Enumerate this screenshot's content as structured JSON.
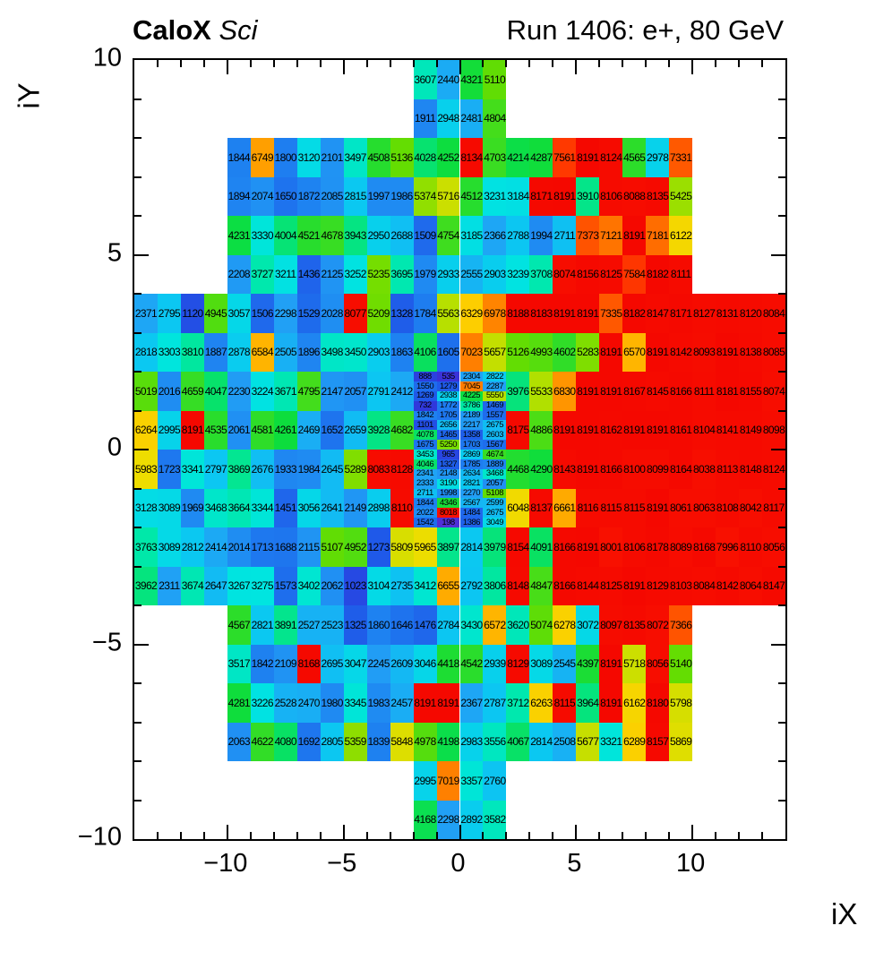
{
  "header": {
    "title_bold": "CaloX",
    "title_italic": "Sci",
    "title_right": "Run 1406: e+, 80 GeV"
  },
  "chart_data": {
    "type": "heatmap",
    "title": "CaloX Sci",
    "subtitle": "Run 1406: e+, 80 GeV",
    "xlabel": "iX",
    "ylabel": "iY",
    "x_range": [
      -14,
      14
    ],
    "y_range": [
      -10,
      10
    ],
    "x_ticks": [
      -10,
      -5,
      0,
      5,
      10
    ],
    "y_ticks": [
      10,
      5,
      0,
      -5,
      -10
    ],
    "value_min": 0,
    "value_max": 8191,
    "palette_stops": [
      [
        0.0,
        "#5b2ed6"
      ],
      [
        0.08,
        "#3333d9"
      ],
      [
        0.15,
        "#1f56e8"
      ],
      [
        0.22,
        "#1e7ef0"
      ],
      [
        0.28,
        "#21a0f5"
      ],
      [
        0.34,
        "#0cc6f2"
      ],
      [
        0.4,
        "#00e5e0"
      ],
      [
        0.46,
        "#00e8a8"
      ],
      [
        0.52,
        "#0ddd3d"
      ],
      [
        0.58,
        "#3fdd1f"
      ],
      [
        0.63,
        "#66dd00"
      ],
      [
        0.68,
        "#b8e000"
      ],
      [
        0.73,
        "#eedd00"
      ],
      [
        0.78,
        "#ffcc00"
      ],
      [
        0.83,
        "#ff9900"
      ],
      [
        0.88,
        "#ff6a00"
      ],
      [
        0.92,
        "#ff3c00"
      ],
      [
        0.96,
        "#fa1500"
      ],
      [
        1.0,
        "#f50800"
      ]
    ],
    "grid": {
      "cols": 28,
      "rows": 20,
      "top_row_iy": 9
    },
    "rows": [
      {
        "iy": 9,
        "segments": [
          {
            "start": 12,
            "values": [
              3607,
              2440,
              4321,
              5110
            ]
          }
        ]
      },
      {
        "iy": 8,
        "segments": [
          {
            "start": 12,
            "values": [
              1911,
              2948,
              2481,
              4804
            ]
          }
        ]
      },
      {
        "iy": 7,
        "segments": [
          {
            "start": 4,
            "values": [
              1844,
              6749,
              1800,
              3120,
              2101,
              3497,
              4508,
              5136,
              4028,
              4252,
              8134,
              4703,
              4214,
              4287,
              7561,
              8191,
              8124,
              4565,
              2978,
              7331
            ]
          }
        ]
      },
      {
        "iy": 6,
        "segments": [
          {
            "start": 4,
            "values": [
              1894,
              2074,
              1650,
              1872,
              2085,
              2815,
              1997,
              1986,
              5374,
              5716,
              4512,
              3231,
              3184,
              8171,
              8191,
              3910,
              8106,
              8088,
              8135,
              5425
            ]
          }
        ]
      },
      {
        "iy": 5,
        "segments": [
          {
            "start": 4,
            "values": [
              4231,
              3330,
              4004,
              4521,
              4678,
              3943,
              2950,
              2688,
              1509,
              4754,
              3185,
              2366,
              2788,
              1994,
              2711,
              7373,
              7121,
              8191,
              7181,
              6122
            ]
          }
        ]
      },
      {
        "iy": 4,
        "segments": [
          {
            "start": 4,
            "values": [
              2208,
              3727,
              3211,
              1436,
              2125,
              3252,
              5235,
              3695,
              1979,
              2933,
              2555,
              2903,
              3239,
              3708,
              8074,
              8156,
              8125,
              7584,
              8182,
              8111
            ]
          }
        ]
      },
      {
        "iy": 3,
        "segments": [
          {
            "start": 0,
            "values": [
              2371,
              2795,
              1120,
              4945,
              3057,
              1506,
              2298,
              1529,
              2028,
              8077,
              5209,
              1328,
              1784,
              5563,
              6329,
              6978,
              8188,
              8183,
              8191,
              8191,
              7335,
              8182,
              8147,
              8171,
              8127,
              8131,
              8120,
              8084
            ]
          }
        ]
      },
      {
        "iy": 2,
        "segments": [
          {
            "start": 0,
            "values": [
              2818,
              3303,
              3810,
              1887,
              2878,
              6584,
              2505,
              1896,
              3498,
              3450,
              2903,
              1863,
              4106,
              1605,
              7023,
              5657,
              5126,
              4993,
              4602,
              5283,
              8191,
              6570,
              8191,
              8142,
              8093,
              8191,
              8138,
              8085
            ]
          }
        ]
      },
      {
        "iy": 1,
        "segments": [
          {
            "start": 0,
            "values": [
              5019,
              2016,
              4659,
              4047,
              2230,
              3224,
              3671,
              4795,
              2147,
              2057,
              2791,
              2412
            ]
          },
          {
            "start": 16,
            "values": [
              3976,
              5533,
              6830,
              8191,
              8191,
              8167,
              8145,
              8166,
              8111,
              8181,
              8155,
              8074
            ]
          }
        ]
      },
      {
        "iy": 0,
        "segments": [
          {
            "start": 0,
            "values": [
              6264,
              2995,
              8191,
              4535,
              2061,
              4581,
              4261,
              2469,
              1652,
              2659,
              3928,
              4682
            ]
          },
          {
            "start": 16,
            "values": [
              8175,
              4886,
              8191,
              8191,
              8162,
              8191,
              8191,
              8161,
              8104,
              8141,
              8149,
              8098
            ]
          }
        ]
      },
      {
        "iy": -1,
        "segments": [
          {
            "start": 0,
            "values": [
              5983,
              1723,
              3341,
              2797,
              3869,
              2676,
              1933,
              1984,
              2645,
              5289,
              8083,
              8128
            ]
          },
          {
            "start": 16,
            "values": [
              4468,
              4290,
              8143,
              8191,
              8166,
              8100,
              8099,
              8164,
              8038,
              8113,
              8148,
              8124
            ]
          }
        ]
      },
      {
        "iy": -2,
        "segments": [
          {
            "start": 0,
            "values": [
              3128,
              3089,
              1969,
              3468,
              3664,
              3344,
              1451,
              3056,
              2641,
              2149,
              2898,
              8110
            ]
          },
          {
            "start": 16,
            "values": [
              6048,
              8137,
              6661,
              8116,
              8115,
              8115,
              8191,
              8061,
              8063,
              8108,
              8042,
              8117
            ]
          }
        ]
      },
      {
        "iy": -3,
        "segments": [
          {
            "start": 0,
            "values": [
              3763,
              3089,
              2812,
              2414,
              2014,
              1713,
              1688,
              2115,
              5107,
              4952,
              1273,
              5809,
              5965,
              3897,
              2814,
              3979,
              8154,
              4091,
              8166,
              8191,
              8001,
              8106,
              8178,
              8089,
              8168,
              7996,
              8110,
              8056
            ]
          }
        ]
      },
      {
        "iy": -4,
        "segments": [
          {
            "start": 0,
            "values": [
              3962,
              2311,
              3674,
              2647,
              3267,
              3275,
              1573,
              3402,
              2062,
              1023,
              3104,
              2735,
              3412,
              6655,
              2792,
              3806,
              8148,
              4847,
              8166,
              8144,
              8125,
              8191,
              8129,
              8103,
              8084,
              8142,
              8064,
              8147
            ]
          }
        ]
      },
      {
        "iy": -5,
        "segments": [
          {
            "start": 4,
            "values": [
              4567,
              2821,
              3891,
              2527,
              2523,
              1325,
              1860,
              1646,
              1476,
              2784,
              3430,
              6572,
              3620,
              5074,
              6278,
              3072,
              8097,
              8135,
              8072,
              7366
            ]
          }
        ]
      },
      {
        "iy": -6,
        "segments": [
          {
            "start": 4,
            "values": [
              3517,
              1842,
              2109,
              8168,
              2695,
              3047,
              2245,
              2609,
              3046,
              4418,
              4542,
              2939,
              8129,
              3089,
              2545,
              4397,
              8191,
              5718,
              8056,
              5140
            ]
          }
        ]
      },
      {
        "iy": -7,
        "segments": [
          {
            "start": 4,
            "values": [
              4281,
              3226,
              2528,
              2470,
              1980,
              3345,
              1983,
              2457,
              8191,
              8191,
              2367,
              2787,
              3712,
              6263,
              8115,
              3964,
              8191,
              6162,
              8180,
              5798
            ]
          }
        ]
      },
      {
        "iy": -8,
        "segments": [
          {
            "start": 4,
            "values": [
              2063,
              4622,
              4080,
              1692,
              2805,
              5359,
              1839,
              5848,
              4978,
              4198,
              2983,
              3556,
              4067,
              2814,
              2508,
              5677,
              3321,
              6289,
              8157,
              5869
            ]
          }
        ]
      },
      {
        "iy": -9,
        "segments": [
          {
            "start": 12,
            "values": [
              2995,
              7019,
              3357,
              2760
            ]
          }
        ]
      },
      {
        "iy": -10,
        "segments": [
          {
            "start": 12,
            "values": [
              4168,
              2298,
              2892,
              3582
            ]
          }
        ]
      }
    ],
    "fine_block": {
      "start_col": 12,
      "cols": 4,
      "top_row_iy": 1,
      "row_span": 4,
      "sub_rows": [
        [
          888,
          535,
          2304,
          2822
        ],
        [
          1550,
          1279,
          7045,
          2287
        ],
        [
          1269,
          2938,
          4225,
          5550
        ],
        [
          732,
          1772,
          3786,
          1469
        ],
        [
          1842,
          1705,
          2189,
          1557
        ],
        [
          1101,
          2656,
          2217,
          2675
        ],
        [
          4078,
          1465,
          1358,
          2603
        ],
        [
          1675,
          5250,
          1703,
          1567
        ],
        [
          3453,
          965,
          2869,
          4674
        ],
        [
          4046,
          1327,
          1785,
          1889
        ],
        [
          2341,
          2148,
          2634,
          3468
        ],
        [
          2333,
          3190,
          2821,
          2057
        ],
        [
          2711,
          1998,
          2270,
          5108
        ],
        [
          1844,
          4346,
          2567,
          2599
        ],
        [
          2022,
          8018,
          1484,
          2675
        ],
        [
          1542,
          198,
          1386,
          3049
        ]
      ]
    }
  }
}
